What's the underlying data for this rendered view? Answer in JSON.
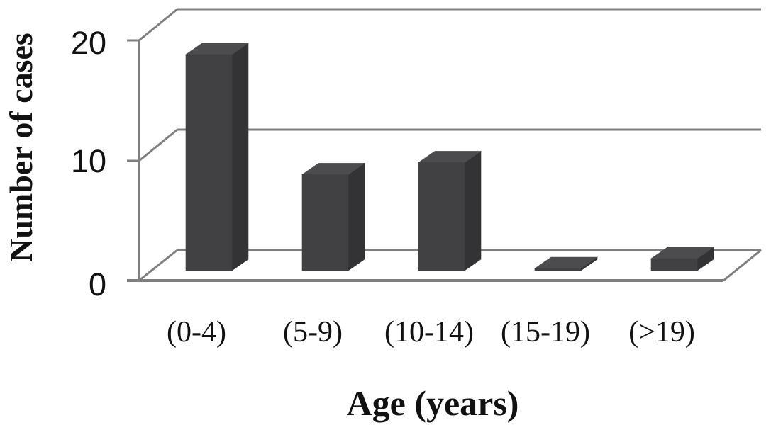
{
  "chart_data": {
    "type": "bar",
    "style": "3d-column",
    "title": "",
    "xlabel": "Age (years)",
    "ylabel": "Number of cases",
    "categories": [
      "(0-4)",
      "(5-9)",
      "(10-14)",
      "(15-19)",
      "(>19)"
    ],
    "values": [
      18,
      8,
      9,
      0,
      1
    ],
    "yticks": [
      20,
      10,
      0
    ],
    "ylim": [
      0,
      20
    ],
    "grid": true,
    "legend_position": "none",
    "colors": {
      "bar_front": "#414144",
      "bar_top": "#4c4c4f",
      "bar_side": "#333336",
      "axis_line": "#7f7f7f",
      "text": "#111111",
      "background": "#ffffff"
    }
  }
}
